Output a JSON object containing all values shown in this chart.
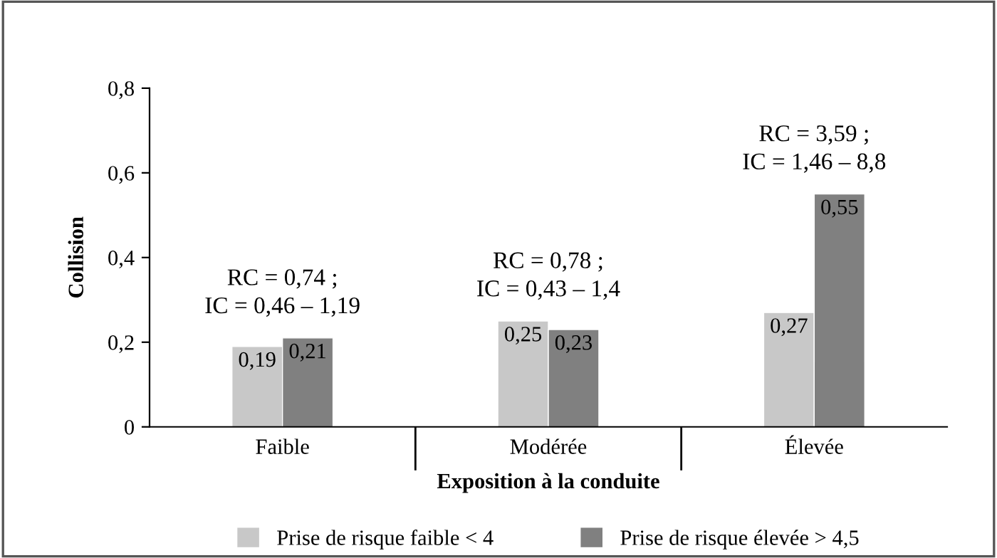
{
  "chart_data": {
    "type": "bar",
    "categories": [
      "Faible",
      "Modérée",
      "Élevée"
    ],
    "series": [
      {
        "name": "Prise de risque faible < 4",
        "color": "#c8c8c8",
        "values": [
          0.19,
          0.25,
          0.27
        ],
        "value_labels": [
          "0,19",
          "0,25",
          "0,27"
        ]
      },
      {
        "name": "Prise de risque élevée > 4,5",
        "color": "#808080",
        "values": [
          0.21,
          0.23,
          0.55
        ],
        "value_labels": [
          "0,21",
          "0,23",
          "0,55"
        ]
      }
    ],
    "xlabel": "Exposition à la conduite",
    "ylabel": "Collision",
    "ylim": [
      0,
      0.8
    ],
    "yticks": [
      0,
      {
        "value": 0.2,
        "label": "0,2"
      },
      {
        "value": 0.4,
        "label": "0,4"
      },
      {
        "value": 0.6,
        "label": "0,6"
      },
      {
        "value": 0.8,
        "label": "0,8"
      }
    ],
    "annotations": [
      "RC = 0,74 ;\nIC = 0,46 – 1,19",
      "RC = 0,78 ;\nIC = 0,43 – 1,4",
      "RC = 3,59 ;\nIC = 1,46 – 8,8"
    ],
    "grid": false,
    "legend": "bottom"
  }
}
